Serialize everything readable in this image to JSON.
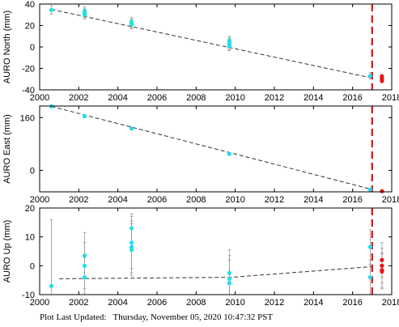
{
  "chart_data": [
    {
      "type": "scatter",
      "ylabel": "AURO North (mm)",
      "xlim": [
        2000,
        2018
      ],
      "ylim": [
        -40,
        40
      ],
      "yticks": [
        -40,
        -20,
        0,
        20,
        40
      ],
      "xticks": [
        2000,
        2002,
        2004,
        2006,
        2008,
        2010,
        2012,
        2014,
        2016,
        2018
      ],
      "grid": false,
      "trend_line": [
        [
          2000.6,
          35
        ],
        [
          2017.0,
          -29
        ]
      ],
      "vertical_dashed_line_x": 2017.0,
      "series": [
        {
          "color": "#22ddee",
          "points": [
            {
              "x": 2000.6,
              "y": 34.5,
              "err": 4
            },
            {
              "x": 2002.3,
              "y": 33.5,
              "err": 4
            },
            {
              "x": 2002.3,
              "y": 31.5,
              "err": 4
            },
            {
              "x": 2002.3,
              "y": 30.0,
              "err": 4
            },
            {
              "x": 2004.7,
              "y": 23.5,
              "err": 4
            },
            {
              "x": 2004.7,
              "y": 22.0,
              "err": 4
            },
            {
              "x": 2004.7,
              "y": 21.0,
              "err": 4
            },
            {
              "x": 2009.7,
              "y": 6.0,
              "err": 4
            },
            {
              "x": 2009.7,
              "y": 4.5,
              "err": 4
            },
            {
              "x": 2009.7,
              "y": 3.0,
              "err": 4
            },
            {
              "x": 2009.7,
              "y": 1.5,
              "err": 4
            },
            {
              "x": 2009.7,
              "y": 0.5,
              "err": 4
            },
            {
              "x": 2016.9,
              "y": -27.0,
              "err": 3
            }
          ]
        },
        {
          "color": "#ee1111",
          "points": [
            {
              "x": 2017.5,
              "y": -27.5,
              "err": 2
            },
            {
              "x": 2017.5,
              "y": -29.5,
              "err": 2
            },
            {
              "x": 2017.5,
              "y": -31.5,
              "err": 2
            }
          ]
        }
      ]
    },
    {
      "type": "scatter",
      "ylabel": "AURO East (mm)",
      "xlim": [
        2000,
        2018
      ],
      "ylim": [
        -65,
        195
      ],
      "yticks": [
        0,
        160
      ],
      "xticks": [
        2000,
        2002,
        2004,
        2006,
        2008,
        2010,
        2012,
        2014,
        2016,
        2018
      ],
      "grid": false,
      "trend_line": [
        [
          2000.6,
          194
        ],
        [
          2017.0,
          -58
        ]
      ],
      "vertical_dashed_line_x": 2017.0,
      "series": [
        {
          "color": "#22ddee",
          "points": [
            {
              "x": 2000.6,
              "y": 194,
              "err": 4
            },
            {
              "x": 2002.3,
              "y": 164,
              "err": 4
            },
            {
              "x": 2004.7,
              "y": 127,
              "err": 4
            },
            {
              "x": 2009.7,
              "y": 50,
              "err": 4
            },
            {
              "x": 2016.9,
              "y": -58,
              "err": 3
            }
          ]
        },
        {
          "color": "#ee1111",
          "points": [
            {
              "x": 2017.5,
              "y": -63,
              "err": 2
            }
          ]
        }
      ]
    },
    {
      "type": "scatter",
      "ylabel": "AURO Up (mm)",
      "xlim": [
        2000,
        2018
      ],
      "ylim": [
        -10,
        20
      ],
      "yticks": [
        -10,
        0,
        10,
        20
      ],
      "xticks": [
        2000,
        2002,
        2004,
        2006,
        2008,
        2010,
        2012,
        2014,
        2016,
        2018
      ],
      "grid": false,
      "trend_line": [
        [
          2001.0,
          -4.5
        ],
        [
          2009.8,
          -4.0
        ],
        [
          2017.0,
          -0.3
        ]
      ],
      "vertical_dashed_line_x": 2017.0,
      "series": [
        {
          "color": "#22ddee",
          "points": [
            {
              "x": 2000.6,
              "y": -7.0,
              "err": 23
            },
            {
              "x": 2002.3,
              "y": 3.5,
              "err": 8
            },
            {
              "x": 2002.3,
              "y": 0.0,
              "err": 8
            },
            {
              "x": 2002.3,
              "y": -4.0,
              "err": 8
            },
            {
              "x": 2004.7,
              "y": 13.0,
              "err": 5
            },
            {
              "x": 2004.7,
              "y": 8.0,
              "err": 9
            },
            {
              "x": 2004.7,
              "y": 6.5,
              "err": 9
            },
            {
              "x": 2004.7,
              "y": 5.5,
              "err": 9
            },
            {
              "x": 2009.7,
              "y": -2.5,
              "err": 8
            },
            {
              "x": 2009.7,
              "y": -4.5,
              "err": 8
            },
            {
              "x": 2009.7,
              "y": -6.0,
              "err": 8
            },
            {
              "x": 2016.9,
              "y": 6.5,
              "err": 6
            },
            {
              "x": 2016.9,
              "y": -4.0,
              "err": 6
            }
          ]
        },
        {
          "color": "#ee1111",
          "points": [
            {
              "x": 2017.5,
              "y": 2.0,
              "err": 6
            },
            {
              "x": 2017.5,
              "y": 0.0,
              "err": 6
            },
            {
              "x": 2017.5,
              "y": -1.5,
              "err": 6
            },
            {
              "x": 2017.5,
              "y": -2.0,
              "err": 6
            }
          ]
        }
      ]
    }
  ],
  "footer": {
    "label": "Plot Last Updated:",
    "timestamp": "Thursday, November 05, 2020 10:47:32 PST"
  },
  "colors": {
    "points_primary": "#22ddee",
    "points_recent": "#ee1111",
    "vertical_line": "#dd1111",
    "error_bars": "#999999"
  }
}
